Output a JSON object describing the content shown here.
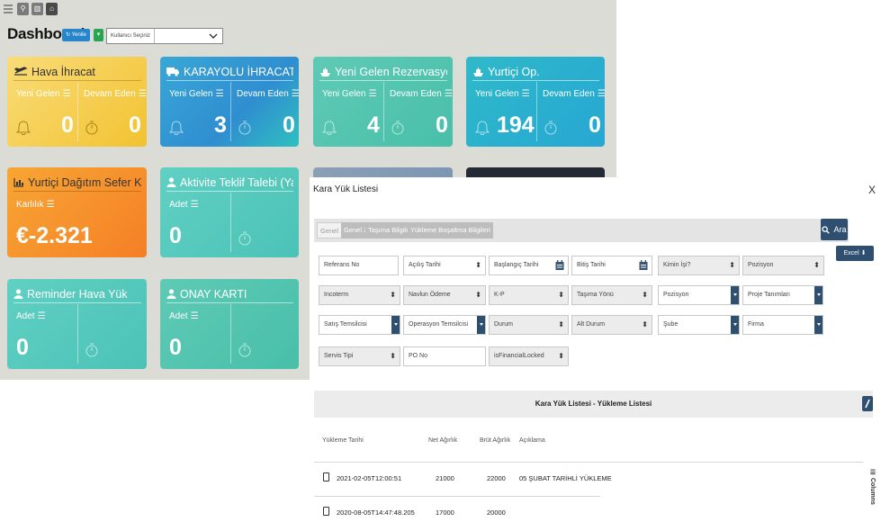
{
  "dashboard": {
    "title": "Dashboard",
    "refresh_label": "Yenile",
    "user_select_placeholder": "Kullanıcı Seçiniz",
    "cards": [
      {
        "title": "Hava İhracat",
        "new_label": "Yeni Gelen",
        "cont_label": "Devam Eden",
        "new_value": "0",
        "cont_value": "0"
      },
      {
        "title": "KARAYOLU İHRACAT RE...",
        "new_label": "Yeni Gelen",
        "cont_label": "Devam Eden",
        "new_value": "3",
        "cont_value": "0"
      },
      {
        "title": "Yeni Gelen Rezervasyonlar",
        "new_label": "Yeni Gelen",
        "cont_label": "Devam Eden",
        "new_value": "4",
        "cont_value": "0"
      },
      {
        "title": "Yurtiçi Op.",
        "new_label": "Yeni Gelen",
        "cont_label": "Devam Eden",
        "new_value": "194",
        "cont_value": "0"
      },
      {
        "title": "Yurtiçi Dağıtım Sefer Kar",
        "label": "Karlılık",
        "value": "€-2.321"
      },
      {
        "title": "Aktivite Teklif Talebi (Yapıl...",
        "label": "Adet",
        "value": "0"
      },
      {
        "title": "Reminder Hava Yük",
        "label": "Adet",
        "value": "0"
      },
      {
        "title": "ONAY KARTI",
        "label": "Adet",
        "value": "0"
      }
    ]
  },
  "modal": {
    "title": "Kara Yük Listesi",
    "close": "X",
    "tabs": [
      "Genel 1",
      "Genel 2",
      "Taşıma Bilgileri",
      "Yükleme Boşaltma Bilgileri"
    ],
    "search_label": "Ara",
    "excel_label": "Excel",
    "fields": {
      "reference_no": "Referans No",
      "opening_date": "Açılış Tarihi",
      "start_date": "Başlangıç Tarihi",
      "end_date": "Bitiş Tarihi",
      "whose_job": "Kimin İşi?",
      "position1": "Pozisyon",
      "incoterm": "Incoterm",
      "freight_payment": "Navlun Ödeme",
      "kp": "K-P",
      "transport_dir": "Taşıma Yönü",
      "position2": "Pozisyon",
      "project_def": "Proje Tanımları",
      "sales_rep": "Satış Temsilcisi",
      "ops_rep": "Operasyon Temsilcisi",
      "status": "Durum",
      "sub_status": "Alt Durum",
      "branch": "Şube",
      "company": "Firma",
      "service_type": "Servis Tipi",
      "po_no": "PO No",
      "is_financial_locked": "isFinancialLocked"
    },
    "grid": {
      "title": "Kara Yük Listesi - Yükleme Listesi",
      "columns": [
        "Yükleme Tarihi",
        "Net Ağırlık",
        "Brüt Ağırlık",
        "Açıklama"
      ],
      "columns_toggle": "Columns",
      "rows": [
        {
          "date": "2021-02-05T12:00:51",
          "net": "21000",
          "gross": "22000",
          "desc": "05 ŞUBAT TARİHLİ YÜKLEME"
        },
        {
          "date": "2020-08-05T14:47:48.205",
          "net": "17000",
          "gross": "20000",
          "desc": ""
        }
      ]
    }
  },
  "colors": {
    "primary": "#2f4f70",
    "refresh": "#2786c9",
    "green": "#27a553"
  }
}
